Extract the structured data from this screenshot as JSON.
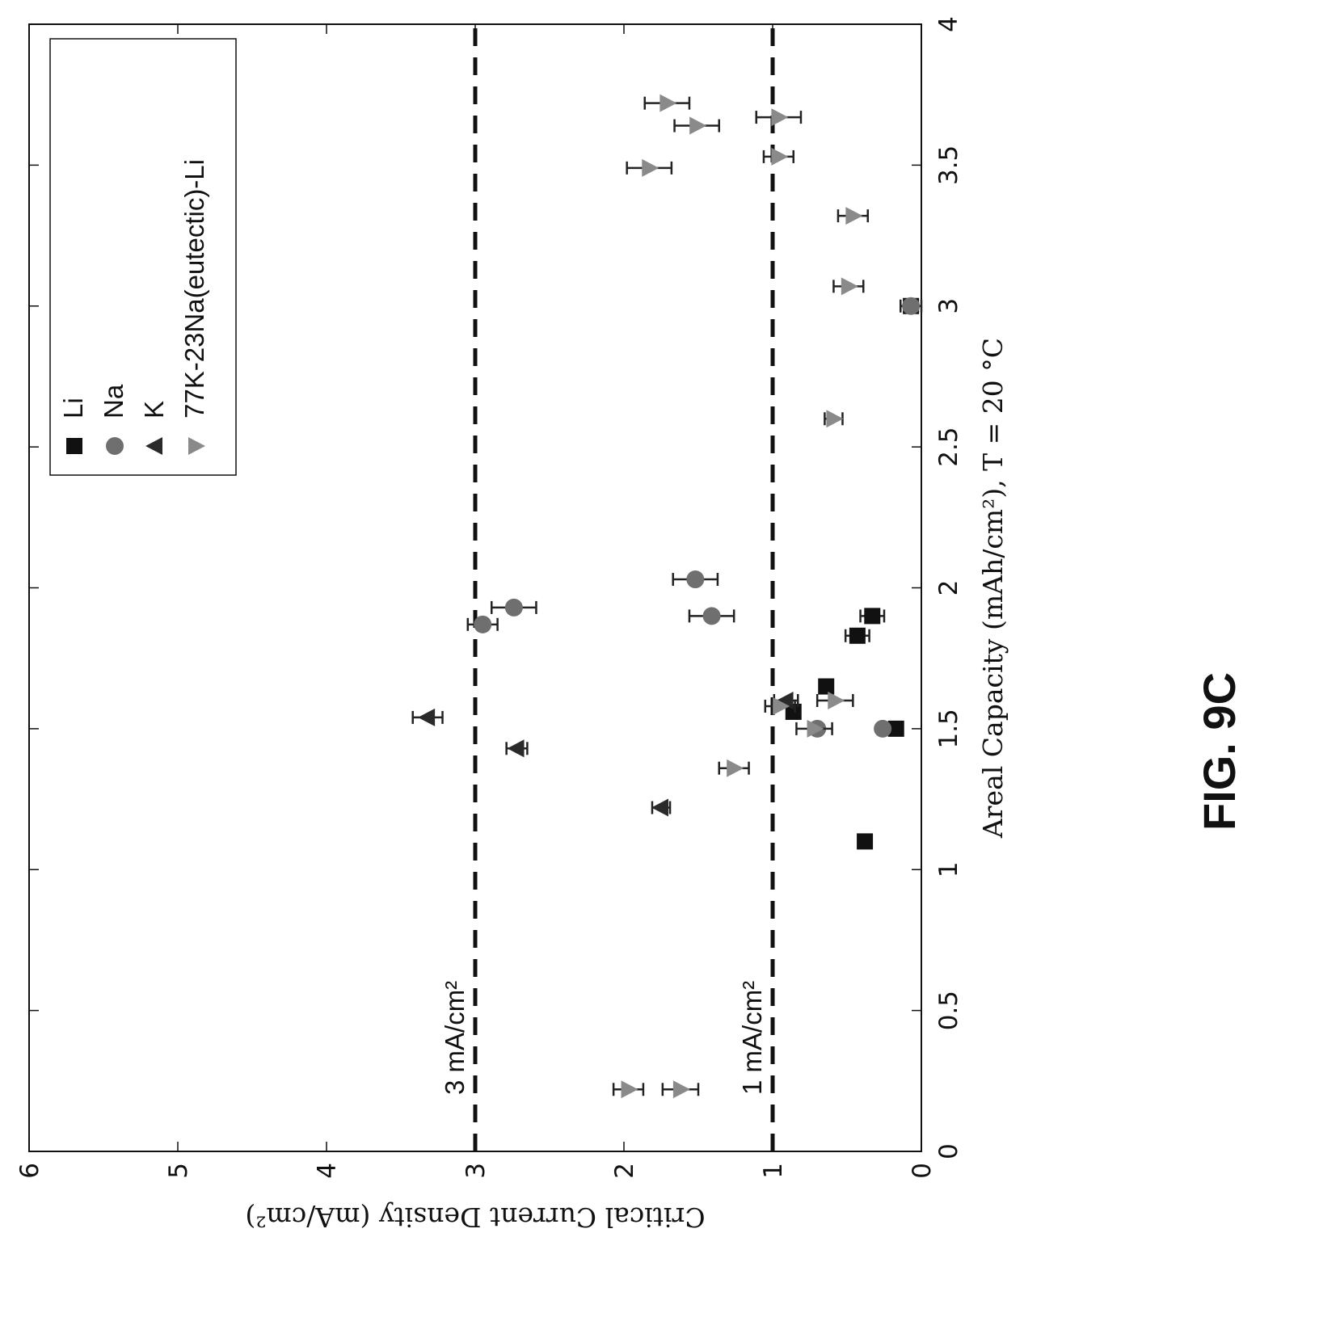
{
  "figure_label": "FIG. 9C",
  "chart_data": {
    "type": "scatter",
    "xlabel": "Areal Capacity",
    "xlabel_unit_num": "mAh",
    "xlabel_unit_den": "cm²",
    "xlabel_suffix": ", T = 20 °C",
    "ylabel": "Critical Current Density",
    "ylabel_unit_num": "mA",
    "ylabel_unit_den": "cm²",
    "xlim": [
      0,
      4
    ],
    "ylim": [
      0,
      6
    ],
    "x_ticks": [
      0,
      0.5,
      1,
      1.5,
      2,
      2.5,
      3,
      3.5,
      4
    ],
    "x_tick_labels": [
      "0",
      "0.5",
      "1",
      "1.5",
      "2",
      "2.5",
      "3",
      "3.5",
      "4"
    ],
    "y_ticks": [
      0,
      1,
      2,
      3,
      4,
      5,
      6
    ],
    "y_tick_labels": [
      "0",
      "1",
      "2",
      "3",
      "4",
      "5",
      "6"
    ],
    "grid": false,
    "legend_position": "top-right",
    "reference_lines": [
      {
        "y": 3,
        "label": "3 mA/cm²",
        "style": "dashed"
      },
      {
        "y": 1,
        "label": "1 mA/cm²",
        "style": "dashed"
      }
    ],
    "series": [
      {
        "name": "Li",
        "marker": "square",
        "color": "#111111",
        "points": [
          {
            "x": 1.1,
            "y": 0.38
          },
          {
            "x": 1.5,
            "y": 0.17
          },
          {
            "x": 1.56,
            "y": 0.86
          },
          {
            "x": 1.65,
            "y": 0.64
          },
          {
            "x": 1.83,
            "y": 0.43,
            "err": 0.08
          },
          {
            "x": 1.9,
            "y": 0.33,
            "err": 0.08
          },
          {
            "x": 3.0,
            "y": 0.07,
            "err": 0.07
          }
        ]
      },
      {
        "name": "Na",
        "marker": "circle",
        "color": "#6f6f6f",
        "points": [
          {
            "x": 1.87,
            "y": 2.95,
            "err": 0.1
          },
          {
            "x": 1.9,
            "y": 1.41,
            "err": 0.15
          },
          {
            "x": 1.93,
            "y": 2.74,
            "err": 0.15
          },
          {
            "x": 2.03,
            "y": 1.52,
            "err": 0.15
          },
          {
            "x": 1.5,
            "y": 0.7
          },
          {
            "x": 1.5,
            "y": 0.26
          },
          {
            "x": 3.0,
            "y": 0.07
          }
        ]
      },
      {
        "name": "K",
        "marker": "triangle-up",
        "color": "#2a2a2a",
        "points": [
          {
            "x": 1.22,
            "y": 1.75,
            "err": 0.06
          },
          {
            "x": 1.43,
            "y": 2.72,
            "err": 0.07
          },
          {
            "x": 1.54,
            "y": 3.32,
            "err": 0.1
          },
          {
            "x": 1.6,
            "y": 0.91,
            "err": 0.08
          }
        ]
      },
      {
        "name": "77K-23Na(eutectic)-Li",
        "marker": "triangle-down",
        "color": "#8a8a8a",
        "points": [
          {
            "x": 0.22,
            "y": 1.97,
            "err": 0.1
          },
          {
            "x": 0.22,
            "y": 1.62,
            "err": 0.12
          },
          {
            "x": 1.36,
            "y": 1.26,
            "err": 0.1
          },
          {
            "x": 1.5,
            "y": 0.72,
            "err": 0.12
          },
          {
            "x": 1.58,
            "y": 0.95,
            "err": 0.1
          },
          {
            "x": 1.6,
            "y": 0.58,
            "err": 0.12
          },
          {
            "x": 2.6,
            "y": 0.59,
            "err": 0.06
          },
          {
            "x": 3.07,
            "y": 0.49,
            "err": 0.1
          },
          {
            "x": 3.32,
            "y": 0.46,
            "err": 0.1
          },
          {
            "x": 3.49,
            "y": 1.83,
            "err": 0.15
          },
          {
            "x": 3.53,
            "y": 0.96,
            "err": 0.1
          },
          {
            "x": 3.64,
            "y": 1.51,
            "err": 0.15
          },
          {
            "x": 3.67,
            "y": 0.96,
            "err": 0.15
          },
          {
            "x": 3.72,
            "y": 1.71,
            "err": 0.15
          }
        ]
      }
    ]
  }
}
